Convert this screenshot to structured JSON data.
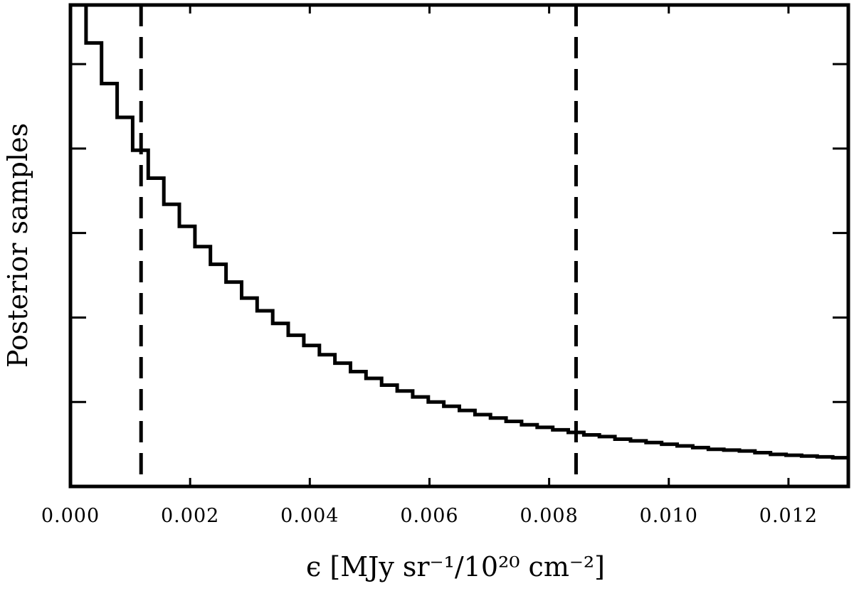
{
  "chart_data": {
    "type": "histogram",
    "title": "",
    "xlabel": "ϵ [MJy sr⁻¹/10²⁰ cm⁻²]",
    "ylabel": "Posterior samples",
    "xlim": [
      0.0,
      0.013
    ],
    "ylim": [
      0,
      57
    ],
    "x_ticks": [
      0.0,
      0.002,
      0.004,
      0.006,
      0.008,
      0.01,
      0.012
    ],
    "x_tick_labels": [
      "0.000",
      "0.002",
      "0.004",
      "0.006",
      "0.008",
      "0.010",
      "0.012"
    ],
    "y_tick_values": [
      10,
      20,
      30,
      40,
      50
    ],
    "y_tick_labels_shown": false,
    "bin_width": 0.00026,
    "bin_edges_start": 0.0,
    "counts": [
      57.0,
      52.5,
      47.7,
      43.7,
      39.8,
      36.5,
      33.4,
      30.8,
      28.4,
      26.3,
      24.2,
      22.3,
      20.8,
      19.3,
      17.9,
      16.7,
      15.6,
      14.6,
      13.6,
      12.8,
      12.0,
      11.3,
      10.6,
      10.0,
      9.5,
      9.0,
      8.5,
      8.1,
      7.7,
      7.3,
      7.0,
      6.7,
      6.4,
      6.1,
      5.9,
      5.6,
      5.4,
      5.2,
      5.0,
      4.8,
      4.6,
      4.4,
      4.3,
      4.2,
      4.0,
      3.8,
      3.7,
      3.6,
      3.5,
      3.4
    ],
    "vlines": [
      {
        "x": 0.00118,
        "style": "dashed"
      },
      {
        "x": 0.00845,
        "style": "dashed"
      }
    ],
    "grid": false,
    "line_color": "#000000"
  }
}
